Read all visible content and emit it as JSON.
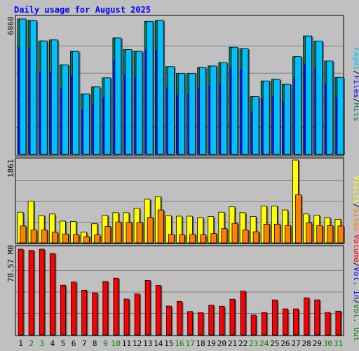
{
  "title": "Daily usage for August 2025",
  "colors": {
    "background": "#c0c0c0",
    "title": "#0000ff",
    "hits": "#00805c",
    "files": "#0000ff",
    "pages": "#00c0ff",
    "visits": "#ffff00",
    "sites": "#ff8000",
    "volume": "#ff0000",
    "in": "#0000ff",
    "out": "#008000"
  },
  "chart_data": [
    {
      "type": "bar",
      "panel": "top",
      "y_label": "6860",
      "ylim": [
        0,
        6860
      ],
      "categories": [
        "1",
        "2",
        "3",
        "4",
        "5",
        "6",
        "7",
        "8",
        "9",
        "10",
        "11",
        "12",
        "13",
        "14",
        "15",
        "16",
        "17",
        "18",
        "19",
        "20",
        "21",
        "22",
        "23",
        "24",
        "25",
        "26",
        "27",
        "28",
        "29",
        "30",
        "31"
      ],
      "series": [
        {
          "name": "Hits",
          "values": [
            6860,
            6780,
            5750,
            5800,
            4540,
            5220,
            3060,
            3420,
            3880,
            5900,
            5310,
            5220,
            6740,
            6780,
            4450,
            4100,
            4100,
            4400,
            4480,
            4650,
            5430,
            5350,
            2930,
            3720,
            3800,
            3550,
            4950,
            6000,
            5740,
            4730,
            3900
          ]
        },
        {
          "name": "Files",
          "values": [
            5450,
            5400,
            4150,
            4170,
            3350,
            4000,
            2300,
            2560,
            2900,
            4750,
            4060,
            3950,
            5300,
            5270,
            3400,
            3020,
            3080,
            3400,
            3500,
            3600,
            4350,
            4300,
            2170,
            2800,
            2950,
            2670,
            3850,
            4600,
            4350,
            3580,
            2900
          ]
        },
        {
          "name": "Pages",
          "values": [
            6860,
            6780,
            5750,
            5800,
            4540,
            5220,
            3060,
            3420,
            3880,
            5900,
            5310,
            5220,
            6740,
            6780,
            4450,
            4100,
            4100,
            4400,
            4480,
            4650,
            5430,
            5350,
            2930,
            3720,
            3800,
            3550,
            4950,
            6000,
            5740,
            4730,
            3900
          ]
        }
      ],
      "legend": [
        "Hits",
        "Files",
        "Pages"
      ]
    },
    {
      "type": "bar",
      "panel": "middle",
      "y_label": "1861",
      "ylim": [
        0,
        1861
      ],
      "categories": [
        "1",
        "2",
        "3",
        "4",
        "5",
        "6",
        "7",
        "8",
        "9",
        "10",
        "11",
        "12",
        "13",
        "14",
        "15",
        "16",
        "17",
        "18",
        "19",
        "20",
        "21",
        "22",
        "23",
        "24",
        "25",
        "26",
        "27",
        "28",
        "29",
        "30",
        "31"
      ],
      "series": [
        {
          "name": "Visits",
          "values": [
            690,
            940,
            610,
            650,
            490,
            480,
            240,
            430,
            620,
            680,
            680,
            780,
            980,
            1040,
            610,
            600,
            600,
            570,
            590,
            690,
            810,
            680,
            590,
            830,
            830,
            740,
            1861,
            650,
            620,
            570,
            530
          ]
        },
        {
          "name": "Sites",
          "values": [
            380,
            290,
            290,
            240,
            200,
            190,
            140,
            180,
            370,
            470,
            460,
            460,
            570,
            740,
            190,
            180,
            190,
            180,
            210,
            320,
            440,
            290,
            250,
            420,
            420,
            390,
            1080,
            450,
            390,
            390,
            380
          ]
        }
      ],
      "legend": [
        "Visits",
        "Sites"
      ]
    },
    {
      "type": "bar",
      "panel": "bottom",
      "y_label": "78.57 MB",
      "ylim": [
        0,
        78.57
      ],
      "categories": [
        "1",
        "2",
        "3",
        "4",
        "5",
        "6",
        "7",
        "8",
        "9",
        "10",
        "11",
        "12",
        "13",
        "14",
        "15",
        "16",
        "17",
        "18",
        "19",
        "20",
        "21",
        "22",
        "23",
        "24",
        "25",
        "26",
        "27",
        "28",
        "29",
        "30",
        "31"
      ],
      "series": [
        {
          "name": "Volume",
          "values": [
            78.57,
            77.5,
            78.57,
            74.7,
            45.6,
            48.5,
            41.0,
            38.5,
            49.0,
            52.0,
            32.8,
            37.6,
            50.0,
            45.4,
            26.4,
            30.7,
            21.4,
            20.5,
            27.2,
            26.2,
            32.7,
            40.2,
            18.2,
            20.6,
            32.1,
            23.8,
            23.8,
            34.0,
            32.1,
            20.6,
            21.7
          ]
        }
      ],
      "legend": [
        "Volume",
        "Vol. In",
        "Vol. Out"
      ]
    }
  ],
  "x_labels": [
    "1",
    "2",
    "3",
    "4",
    "5",
    "6",
    "7",
    "8",
    "9",
    "10",
    "11",
    "12",
    "13",
    "14",
    "15",
    "16",
    "17",
    "18",
    "19",
    "20",
    "21",
    "22",
    "23",
    "24",
    "25",
    "26",
    "27",
    "28",
    "29",
    "30",
    "31"
  ],
  "weekend_days": [
    2,
    3,
    9,
    10,
    16,
    17,
    23,
    24,
    30,
    31
  ]
}
